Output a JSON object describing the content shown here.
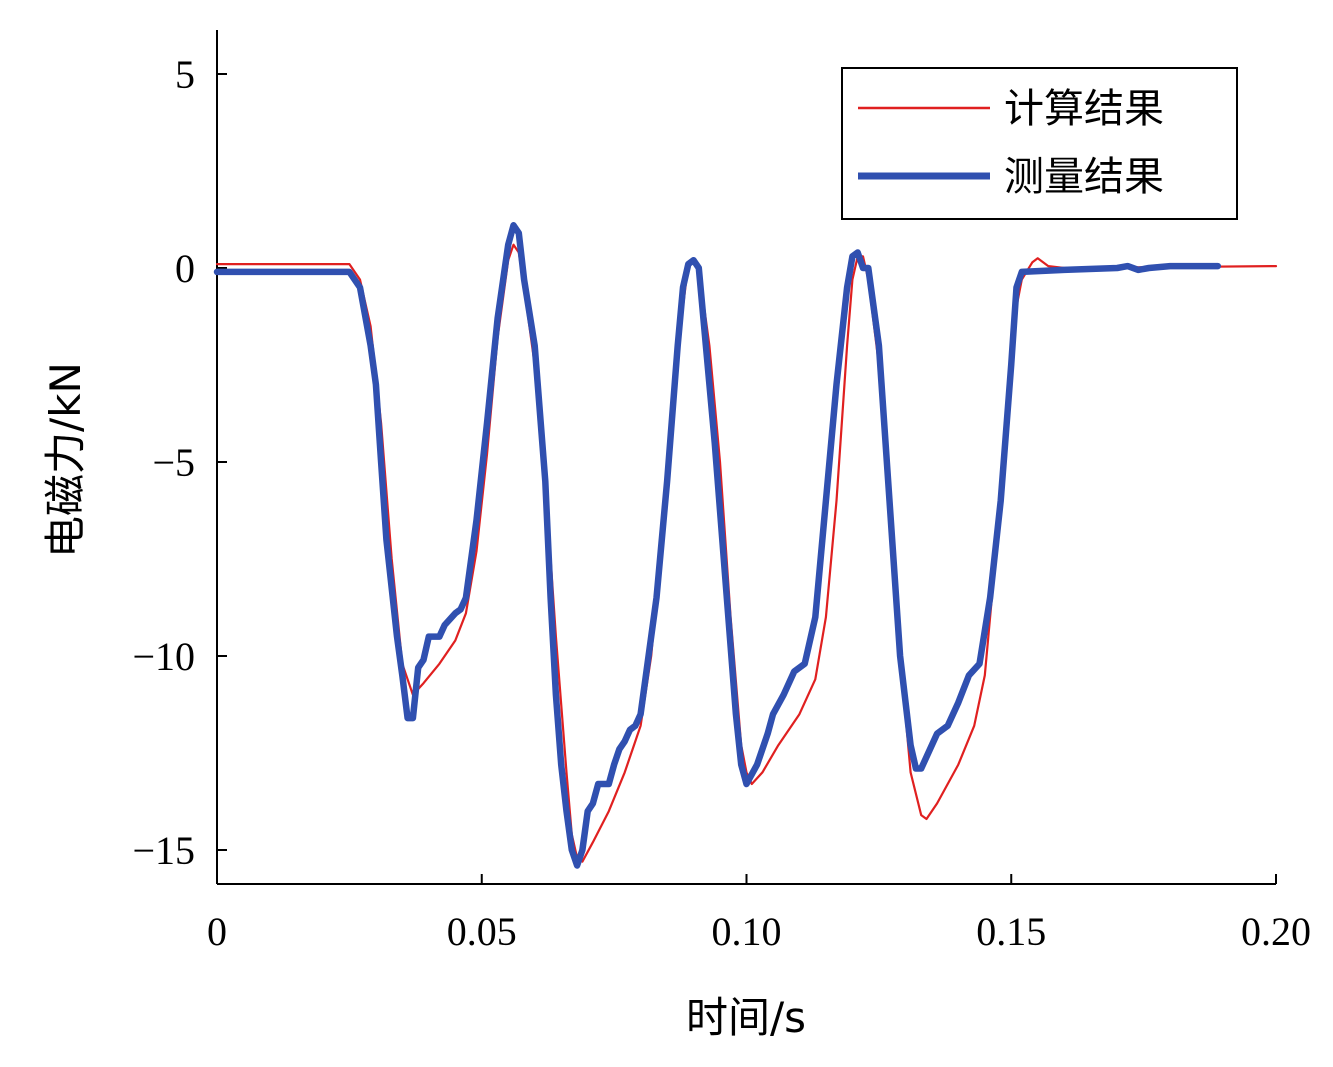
{
  "chart_data": {
    "type": "line",
    "xlabel": "时间/s",
    "ylabel": "电磁力/kN",
    "xlim": [
      0,
      0.2
    ],
    "ylim": [
      -16,
      6
    ],
    "x_ticks": [
      {
        "value": 0,
        "label": "0"
      },
      {
        "value": 0.05,
        "label": "0.05"
      },
      {
        "value": 0.1,
        "label": "0.10"
      },
      {
        "value": 0.15,
        "label": "0.15"
      },
      {
        "value": 0.2,
        "label": "0.20"
      }
    ],
    "y_ticks": [
      {
        "value": 5,
        "label": "5"
      },
      {
        "value": 0,
        "label": "0"
      },
      {
        "value": -5,
        "label": "−5"
      },
      {
        "value": -10,
        "label": "−10"
      },
      {
        "value": -15,
        "label": "−15"
      }
    ],
    "grid": false,
    "legend_position": "top-right",
    "series": [
      {
        "name": "计算结果",
        "color": "#e02020",
        "width": "thin",
        "points": [
          [
            0,
            0.1
          ],
          [
            0.025,
            0.1
          ],
          [
            0.027,
            -0.3
          ],
          [
            0.029,
            -1.5
          ],
          [
            0.031,
            -4
          ],
          [
            0.033,
            -7.5
          ],
          [
            0.035,
            -10.2
          ],
          [
            0.037,
            -11
          ],
          [
            0.039,
            -10.7
          ],
          [
            0.042,
            -10.2
          ],
          [
            0.045,
            -9.6
          ],
          [
            0.047,
            -8.9
          ],
          [
            0.049,
            -7.3
          ],
          [
            0.051,
            -4.8
          ],
          [
            0.053,
            -1.8
          ],
          [
            0.055,
            0.2
          ],
          [
            0.056,
            0.6
          ],
          [
            0.057,
            0.4
          ],
          [
            0.058,
            -0.5
          ],
          [
            0.06,
            -2.5
          ],
          [
            0.062,
            -5.5
          ],
          [
            0.064,
            -9.5
          ],
          [
            0.066,
            -13
          ],
          [
            0.067,
            -14.6
          ],
          [
            0.068,
            -15.2
          ],
          [
            0.069,
            -15.3
          ],
          [
            0.071,
            -14.8
          ],
          [
            0.074,
            -14
          ],
          [
            0.077,
            -13
          ],
          [
            0.08,
            -11.8
          ],
          [
            0.082,
            -10
          ],
          [
            0.084,
            -7
          ],
          [
            0.086,
            -4
          ],
          [
            0.088,
            -1
          ],
          [
            0.089,
            0.1
          ],
          [
            0.09,
            0.2
          ],
          [
            0.091,
            0
          ],
          [
            0.093,
            -2
          ],
          [
            0.095,
            -5
          ],
          [
            0.097,
            -9
          ],
          [
            0.099,
            -12.3
          ],
          [
            0.1,
            -13
          ],
          [
            0.101,
            -13.3
          ],
          [
            0.103,
            -13
          ],
          [
            0.106,
            -12.3
          ],
          [
            0.11,
            -11.5
          ],
          [
            0.113,
            -10.6
          ],
          [
            0.115,
            -9
          ],
          [
            0.117,
            -6
          ],
          [
            0.119,
            -2
          ],
          [
            0.12,
            -0.3
          ],
          [
            0.121,
            0.3
          ],
          [
            0.122,
            0.3
          ],
          [
            0.123,
            -0.3
          ],
          [
            0.125,
            -2.5
          ],
          [
            0.127,
            -6
          ],
          [
            0.129,
            -10
          ],
          [
            0.131,
            -13
          ],
          [
            0.133,
            -14.1
          ],
          [
            0.134,
            -14.2
          ],
          [
            0.136,
            -13.8
          ],
          [
            0.14,
            -12.8
          ],
          [
            0.143,
            -11.8
          ],
          [
            0.145,
            -10.5
          ],
          [
            0.147,
            -7.5
          ],
          [
            0.149,
            -4.2
          ],
          [
            0.151,
            -1
          ],
          [
            0.152,
            -0.3
          ],
          [
            0.154,
            0.15
          ],
          [
            0.155,
            0.25
          ],
          [
            0.157,
            0.05
          ],
          [
            0.16,
            0
          ],
          [
            0.2,
            0.05
          ]
        ]
      },
      {
        "name": "测量结果",
        "color": "#3050b0",
        "width": "thick",
        "points": [
          [
            0,
            -0.1
          ],
          [
            0.025,
            -0.1
          ],
          [
            0.027,
            -0.5
          ],
          [
            0.029,
            -2
          ],
          [
            0.03,
            -3
          ],
          [
            0.031,
            -5
          ],
          [
            0.032,
            -7
          ],
          [
            0.034,
            -9.5
          ],
          [
            0.035,
            -10.5
          ],
          [
            0.036,
            -11.6
          ],
          [
            0.037,
            -11.6
          ],
          [
            0.038,
            -10.3
          ],
          [
            0.039,
            -10.1
          ],
          [
            0.04,
            -9.5
          ],
          [
            0.042,
            -9.5
          ],
          [
            0.043,
            -9.2
          ],
          [
            0.045,
            -8.9
          ],
          [
            0.046,
            -8.8
          ],
          [
            0.047,
            -8.5
          ],
          [
            0.049,
            -6.5
          ],
          [
            0.051,
            -4
          ],
          [
            0.053,
            -1.3
          ],
          [
            0.055,
            0.6
          ],
          [
            0.056,
            1.1
          ],
          [
            0.057,
            0.9
          ],
          [
            0.058,
            -0.3
          ],
          [
            0.06,
            -2
          ],
          [
            0.062,
            -5.5
          ],
          [
            0.063,
            -8.5
          ],
          [
            0.064,
            -11
          ],
          [
            0.065,
            -12.8
          ],
          [
            0.066,
            -14
          ],
          [
            0.067,
            -15
          ],
          [
            0.068,
            -15.4
          ],
          [
            0.069,
            -15
          ],
          [
            0.07,
            -14
          ],
          [
            0.071,
            -13.8
          ],
          [
            0.072,
            -13.3
          ],
          [
            0.074,
            -13.3
          ],
          [
            0.075,
            -12.8
          ],
          [
            0.076,
            -12.4
          ],
          [
            0.077,
            -12.2
          ],
          [
            0.078,
            -11.9
          ],
          [
            0.079,
            -11.8
          ],
          [
            0.08,
            -11.5
          ],
          [
            0.081,
            -10.5
          ],
          [
            0.083,
            -8.5
          ],
          [
            0.085,
            -5.5
          ],
          [
            0.087,
            -2
          ],
          [
            0.088,
            -0.5
          ],
          [
            0.089,
            0.1
          ],
          [
            0.09,
            0.2
          ],
          [
            0.091,
            0
          ],
          [
            0.092,
            -1.5
          ],
          [
            0.094,
            -4.5
          ],
          [
            0.096,
            -8
          ],
          [
            0.098,
            -11.5
          ],
          [
            0.099,
            -12.8
          ],
          [
            0.1,
            -13.3
          ],
          [
            0.102,
            -12.8
          ],
          [
            0.104,
            -12
          ],
          [
            0.105,
            -11.5
          ],
          [
            0.107,
            -11
          ],
          [
            0.109,
            -10.4
          ],
          [
            0.111,
            -10.2
          ],
          [
            0.113,
            -9
          ],
          [
            0.115,
            -6
          ],
          [
            0.117,
            -3
          ],
          [
            0.119,
            -0.5
          ],
          [
            0.12,
            0.3
          ],
          [
            0.121,
            0.4
          ],
          [
            0.122,
            0
          ],
          [
            0.123,
            0
          ],
          [
            0.125,
            -2
          ],
          [
            0.127,
            -6
          ],
          [
            0.129,
            -10
          ],
          [
            0.131,
            -12.3
          ],
          [
            0.132,
            -12.9
          ],
          [
            0.133,
            -12.9
          ],
          [
            0.134,
            -12.6
          ],
          [
            0.136,
            -12
          ],
          [
            0.138,
            -11.8
          ],
          [
            0.14,
            -11.2
          ],
          [
            0.142,
            -10.5
          ],
          [
            0.144,
            -10.2
          ],
          [
            0.146,
            -8.5
          ],
          [
            0.148,
            -6
          ],
          [
            0.15,
            -2.5
          ],
          [
            0.151,
            -0.5
          ],
          [
            0.152,
            -0.1
          ],
          [
            0.16,
            -0.05
          ],
          [
            0.17,
            0
          ],
          [
            0.172,
            0.05
          ],
          [
            0.174,
            -0.05
          ],
          [
            0.176,
            0
          ],
          [
            0.18,
            0.05
          ],
          [
            0.189,
            0.05
          ]
        ]
      }
    ]
  }
}
